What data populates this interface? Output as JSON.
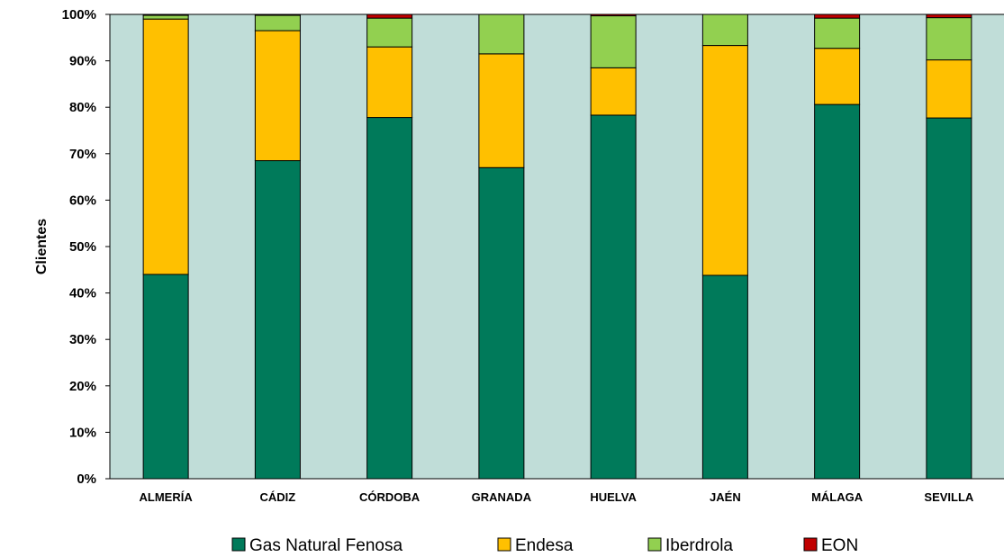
{
  "chart_data": {
    "type": "bar",
    "stacked": true,
    "percent": true,
    "ylabel": "Clientes",
    "xlabel": "",
    "ylim": [
      0,
      100
    ],
    "yticks": [
      "0%",
      "10%",
      "20%",
      "30%",
      "40%",
      "50%",
      "60%",
      "70%",
      "80%",
      "90%",
      "100%"
    ],
    "categories": [
      "ALMERÍA",
      "CÁDIZ",
      "CÓRDOBA",
      "GRANADA",
      "HUELVA",
      "JAÉN",
      "MÁLAGA",
      "SEVILLA"
    ],
    "series": [
      {
        "name": "Gas Natural Fenosa",
        "color": "#007a5a",
        "values": [
          44.0,
          68.5,
          77.8,
          67.0,
          78.3,
          43.8,
          80.6,
          77.7
        ]
      },
      {
        "name": "Endesa",
        "color": "#ffc000",
        "values": [
          55.0,
          28.0,
          15.2,
          24.5,
          10.2,
          49.5,
          12.1,
          12.5
        ]
      },
      {
        "name": "Iberdrola",
        "color": "#92d050",
        "values": [
          0.8,
          3.3,
          6.2,
          8.5,
          11.2,
          6.7,
          6.5,
          9.1
        ]
      },
      {
        "name": "EON",
        "color": "#c00000",
        "values": [
          0.2,
          0.2,
          0.8,
          0.0,
          0.3,
          0.0,
          0.8,
          0.7
        ]
      }
    ],
    "plot_background": "#c0ddd8",
    "grid": false,
    "legend_position": "bottom"
  }
}
